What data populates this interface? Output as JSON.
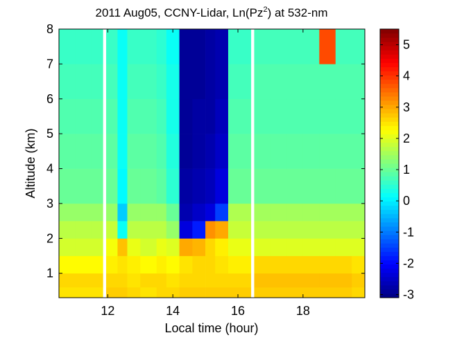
{
  "chart_data": {
    "type": "heatmap",
    "title": [
      "2011 Aug05, CCNY-Lidar, Ln(Pz",
      "2",
      ") at 532-nm"
    ],
    "x_label": "Local time (hour)",
    "y_label": "Altitude (km)",
    "x_edges": [
      10.5,
      11.0,
      11.5,
      11.85,
      11.95,
      12.3,
      12.6,
      13.0,
      13.5,
      13.8,
      14.2,
      14.6,
      15.0,
      15.3,
      15.7,
      16.4,
      16.5,
      17.0,
      17.5,
      18.0,
      18.5,
      19.0,
      19.5,
      19.9
    ],
    "y_edges": [
      0.3,
      0.6,
      1.0,
      1.5,
      2.0,
      2.5,
      3.0,
      4.0,
      5.0,
      6.0,
      7.0,
      8.0
    ],
    "values": [
      [
        2.5,
        2.6,
        2.3,
        1.9,
        1.7,
        1.4,
        1.0,
        0.9,
        0.8,
        0.7,
        0.6
      ],
      [
        2.5,
        2.6,
        2.3,
        1.9,
        1.7,
        1.4,
        1.0,
        0.9,
        0.8,
        0.7,
        0.6
      ],
      [
        2.5,
        2.6,
        2.3,
        1.9,
        1.7,
        1.4,
        1.0,
        0.9,
        0.8,
        0.7,
        0.6
      ],
      [
        null,
        null,
        null,
        null,
        null,
        null,
        null,
        null,
        null,
        null,
        null
      ],
      [
        2.7,
        2.6,
        2.4,
        2.2,
        1.8,
        1.4,
        1.0,
        0.9,
        0.8,
        0.7,
        0.6
      ],
      [
        2.7,
        2.6,
        2.5,
        2.8,
        0.2,
        -0.3,
        0.1,
        0.2,
        0.2,
        0.2,
        0.2
      ],
      [
        2.6,
        2.5,
        2.4,
        2.1,
        1.7,
        1.4,
        1.0,
        0.9,
        0.8,
        0.7,
        0.6
      ],
      [
        2.5,
        2.6,
        2.3,
        1.9,
        1.7,
        1.4,
        1.0,
        0.9,
        0.8,
        0.7,
        0.6
      ],
      [
        2.6,
        2.6,
        2.4,
        2.1,
        1.7,
        1.4,
        0.9,
        0.8,
        0.7,
        0.6,
        0.5
      ],
      [
        2.6,
        2.5,
        2.3,
        2.0,
        1.4,
        1.0,
        0.5,
        0.4,
        0.3,
        0.3,
        0.2
      ],
      [
        2.7,
        2.6,
        2.5,
        3.0,
        -2.3,
        -2.7,
        -2.8,
        -2.9,
        -2.9,
        -2.9,
        -2.9
      ],
      [
        2.7,
        2.6,
        2.6,
        2.9,
        -1.8,
        -2.5,
        -2.7,
        -2.8,
        -2.8,
        -2.9,
        -2.9
      ],
      [
        2.7,
        2.6,
        2.6,
        2.6,
        3.2,
        -2.3,
        -2.6,
        -2.7,
        -2.8,
        -2.8,
        -2.8
      ],
      [
        2.7,
        2.6,
        2.5,
        2.4,
        3.0,
        -1.5,
        -2.3,
        -2.5,
        -2.6,
        -2.7,
        -2.7
      ],
      [
        2.7,
        2.6,
        2.4,
        2.1,
        1.8,
        1.6,
        1.0,
        0.9,
        0.8,
        0.7,
        0.6
      ],
      [
        null,
        null,
        null,
        null,
        null,
        null,
        null,
        null,
        null,
        null,
        null
      ],
      [
        2.7,
        2.8,
        2.6,
        2.0,
        1.7,
        1.5,
        1.0,
        0.9,
        0.8,
        0.8,
        0.7
      ],
      [
        2.7,
        2.8,
        2.6,
        2.0,
        1.7,
        1.5,
        1.0,
        0.9,
        0.8,
        0.8,
        0.7
      ],
      [
        2.7,
        2.8,
        2.6,
        2.0,
        1.7,
        1.5,
        1.0,
        0.9,
        0.8,
        0.8,
        0.7
      ],
      [
        2.7,
        2.8,
        2.6,
        2.0,
        1.7,
        1.5,
        1.0,
        0.9,
        0.8,
        0.8,
        0.7
      ],
      [
        2.7,
        2.8,
        2.6,
        2.0,
        1.7,
        1.5,
        1.0,
        0.9,
        0.8,
        0.8,
        3.8
      ],
      [
        2.7,
        2.8,
        2.6,
        2.0,
        1.7,
        1.5,
        1.0,
        0.9,
        0.8,
        0.8,
        0.7
      ],
      [
        2.6,
        2.7,
        2.5,
        2.0,
        1.7,
        1.5,
        1.0,
        0.9,
        0.8,
        0.8,
        0.7
      ]
    ],
    "xlim": [
      10.5,
      19.9
    ],
    "xticks": [
      12,
      14,
      16,
      18
    ],
    "ylim": [
      0.3,
      8
    ],
    "yticks": [
      1,
      2,
      3,
      4,
      5,
      6,
      7,
      8
    ],
    "clim": [
      -3.1,
      5.5
    ],
    "cticks": [
      -3,
      -2,
      -1,
      0,
      1,
      2,
      3,
      4,
      5
    ],
    "colormap": "jet"
  }
}
